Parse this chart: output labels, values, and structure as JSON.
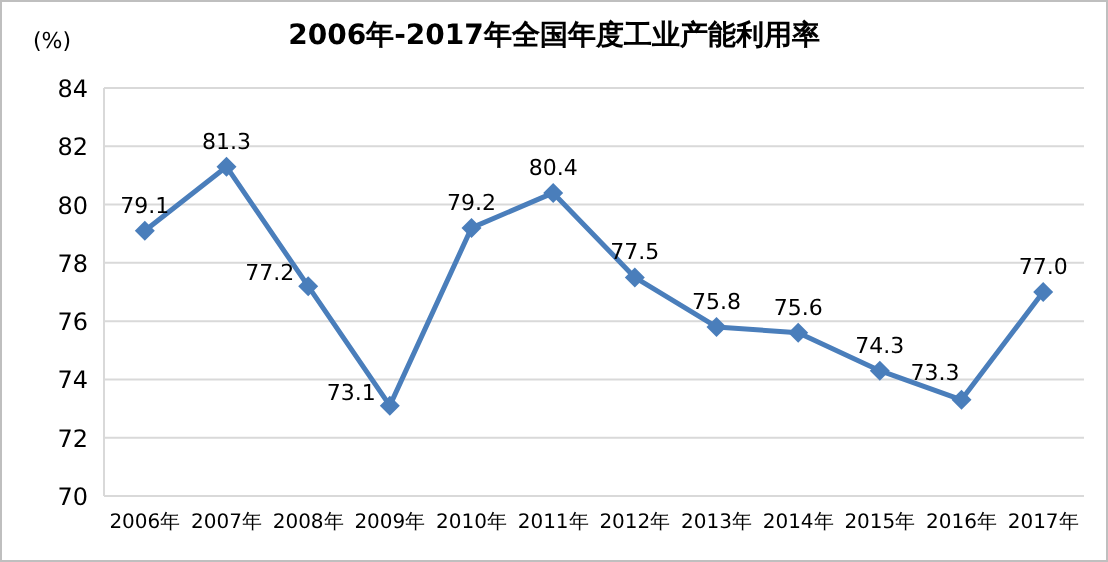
{
  "chart_data": {
    "type": "line",
    "title": "2006年-2017年全国年度工业产能利用率",
    "ylabel": "(%)",
    "categories": [
      "2006年",
      "2007年",
      "2008年",
      "2009年",
      "2010年",
      "2011年",
      "2012年",
      "2013年",
      "2014年",
      "2015年",
      "2016年",
      "2017年"
    ],
    "series": [
      {
        "color": "#4a7ebb",
        "values": [
          79.1,
          81.3,
          77.2,
          73.1,
          79.2,
          80.4,
          77.5,
          75.8,
          75.6,
          74.3,
          73.3,
          77.0
        ],
        "value_labels": [
          "79.1",
          "81.3",
          "77.2",
          "73.1",
          "79.2",
          "80.4",
          "77.5",
          "75.8",
          "75.6",
          "74.3",
          "73.3",
          "77.0"
        ]
      }
    ],
    "ylim": [
      70,
      84
    ],
    "yticks": [
      70,
      72,
      74,
      76,
      78,
      80,
      82,
      84
    ],
    "grid": "y",
    "marker": "diamond",
    "line_style": "solid"
  }
}
